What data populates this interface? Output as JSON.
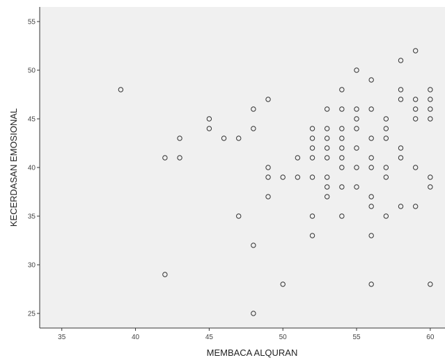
{
  "chart_data": {
    "type": "scatter",
    "title": "",
    "xlabel": "MEMBACA ALQURAN",
    "ylabel": "KECERDASAN EMOSIONAL",
    "xlim": [
      33.5,
      61
    ],
    "ylim": [
      23.5,
      56.5
    ],
    "x_ticks": [
      35,
      40,
      45,
      50,
      55,
      60
    ],
    "y_ticks": [
      25,
      30,
      35,
      40,
      45,
      50,
      55
    ],
    "grid": false,
    "legend": "none",
    "colors": {
      "plot_bg": "#f0f0f0",
      "marker": "#333333",
      "axis": "#333333"
    },
    "points": [
      [
        39,
        48
      ],
      [
        42,
        41
      ],
      [
        42,
        29
      ],
      [
        43,
        43
      ],
      [
        43,
        41
      ],
      [
        45,
        45
      ],
      [
        45,
        44
      ],
      [
        46,
        43
      ],
      [
        47,
        43
      ],
      [
        47,
        35
      ],
      [
        48,
        46
      ],
      [
        48,
        44
      ],
      [
        48,
        32
      ],
      [
        48,
        25
      ],
      [
        49,
        47
      ],
      [
        49,
        40
      ],
      [
        49,
        39
      ],
      [
        49,
        37
      ],
      [
        50,
        39
      ],
      [
        50,
        28
      ],
      [
        51,
        41
      ],
      [
        51,
        39
      ],
      [
        52,
        44
      ],
      [
        52,
        43
      ],
      [
        52,
        42
      ],
      [
        52,
        41
      ],
      [
        52,
        39
      ],
      [
        52,
        35
      ],
      [
        52,
        33
      ],
      [
        53,
        46
      ],
      [
        53,
        44
      ],
      [
        53,
        43
      ],
      [
        53,
        42
      ],
      [
        53,
        41
      ],
      [
        53,
        39
      ],
      [
        53,
        38
      ],
      [
        53,
        37
      ],
      [
        54,
        48
      ],
      [
        54,
        46
      ],
      [
        54,
        44
      ],
      [
        54,
        43
      ],
      [
        54,
        42
      ],
      [
        54,
        41
      ],
      [
        54,
        40
      ],
      [
        54,
        38
      ],
      [
        54,
        35
      ],
      [
        55,
        50
      ],
      [
        55,
        46
      ],
      [
        55,
        45
      ],
      [
        55,
        44
      ],
      [
        55,
        42
      ],
      [
        55,
        40
      ],
      [
        55,
        38
      ],
      [
        56,
        49
      ],
      [
        56,
        46
      ],
      [
        56,
        43
      ],
      [
        56,
        41
      ],
      [
        56,
        40
      ],
      [
        56,
        37
      ],
      [
        56,
        36
      ],
      [
        56,
        33
      ],
      [
        56,
        28
      ],
      [
        57,
        45
      ],
      [
        57,
        44
      ],
      [
        57,
        43
      ],
      [
        57,
        40
      ],
      [
        57,
        39
      ],
      [
        57,
        35
      ],
      [
        58,
        51
      ],
      [
        58,
        48
      ],
      [
        58,
        47
      ],
      [
        58,
        42
      ],
      [
        58,
        41
      ],
      [
        58,
        36
      ],
      [
        59,
        52
      ],
      [
        59,
        47
      ],
      [
        59,
        46
      ],
      [
        59,
        45
      ],
      [
        59,
        40
      ],
      [
        59,
        36
      ],
      [
        60,
        48
      ],
      [
        60,
        47
      ],
      [
        60,
        46
      ],
      [
        60,
        45
      ],
      [
        60,
        39
      ],
      [
        60,
        38
      ],
      [
        60,
        28
      ]
    ]
  }
}
